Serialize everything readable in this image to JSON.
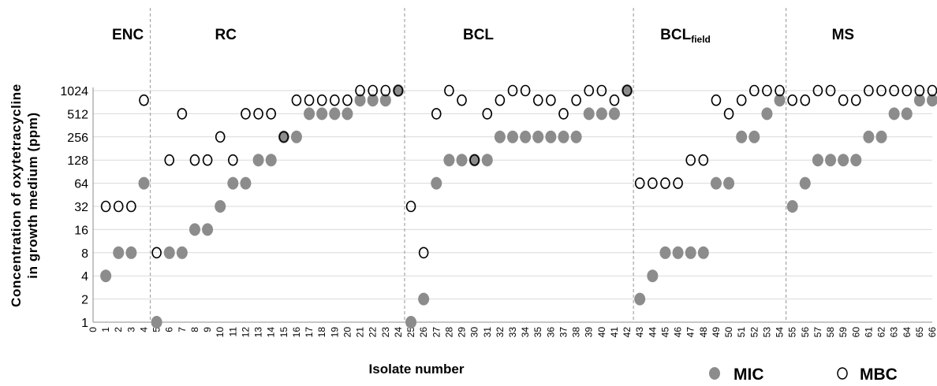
{
  "chart_data": {
    "type": "scatter",
    "y_scale": "log2",
    "ylim": [
      1,
      1024
    ],
    "yticks": [
      "1",
      "2",
      "4",
      "8",
      "16",
      "32",
      "64",
      "128",
      "256",
      "512",
      "1024"
    ],
    "xlim": [
      0,
      66
    ],
    "xticks": [
      "0",
      "1",
      "2",
      "3",
      "4",
      "5",
      "6",
      "7",
      "8",
      "9",
      "10",
      "11",
      "12",
      "13",
      "14",
      "15",
      "16",
      "17",
      "18",
      "19",
      "20",
      "21",
      "22",
      "23",
      "24",
      "25",
      "26",
      "27",
      "28",
      "29",
      "30",
      "31",
      "32",
      "33",
      "34",
      "35",
      "36",
      "37",
      "38",
      "39",
      "40",
      "41",
      "42",
      "43",
      "44",
      "45",
      "46",
      "47",
      "48",
      "49",
      "50",
      "51",
      "52",
      "53",
      "54",
      "55",
      "56",
      "57",
      "58",
      "59",
      "60",
      "61",
      "62",
      "63",
      "64",
      "65",
      "66"
    ],
    "xlabel": "Isolate number",
    "ylabel_line1": "Concentration of oxytetracycline",
    "ylabel_line2": "in growth medium (ppm)",
    "grid": "horizontal",
    "groups": [
      {
        "label": "ENC",
        "sub": "",
        "x_start": 0.5
      },
      {
        "label": "RC",
        "sub": "",
        "x_start": 4.5
      },
      {
        "label": "BCL",
        "sub": "",
        "x_start": 24.5
      },
      {
        "label": "BCL",
        "sub": "field",
        "x_start": 42.5
      },
      {
        "label": "MS",
        "sub": "",
        "x_start": 54.5
      }
    ],
    "separators": [
      4.5,
      24.5,
      42.5,
      54.5
    ],
    "legend": {
      "position": "bottom-right",
      "items": [
        "MIC",
        "MBC"
      ]
    },
    "series": [
      {
        "name": "MIC",
        "marker": "filled-circle",
        "color": "#8c8c8c",
        "x": [
          1,
          2,
          3,
          4,
          5,
          6,
          7,
          8,
          9,
          10,
          11,
          12,
          13,
          14,
          15,
          16,
          17,
          18,
          19,
          20,
          21,
          22,
          23,
          24,
          25,
          26,
          27,
          28,
          29,
          30,
          31,
          32,
          33,
          34,
          35,
          36,
          37,
          38,
          39,
          40,
          41,
          42,
          43,
          44,
          45,
          46,
          47,
          48,
          49,
          50,
          51,
          52,
          53,
          54,
          55,
          56,
          57,
          58,
          59,
          60,
          61,
          62,
          63,
          64,
          65,
          66
        ],
        "y": [
          4,
          8,
          8,
          64,
          1,
          8,
          8,
          16,
          16,
          32,
          64,
          64,
          128,
          128,
          256,
          256,
          512,
          512,
          512,
          512,
          768,
          768,
          768,
          1024,
          1,
          2,
          64,
          128,
          128,
          128,
          128,
          256,
          256,
          256,
          256,
          256,
          256,
          256,
          512,
          512,
          512,
          1024,
          2,
          4,
          8,
          8,
          8,
          8,
          64,
          64,
          256,
          256,
          512,
          768,
          32,
          64,
          128,
          128,
          128,
          128,
          256,
          256,
          512,
          512,
          768,
          768
        ]
      },
      {
        "name": "MBC",
        "marker": "open-circle",
        "color": "#000000",
        "x": [
          1,
          2,
          3,
          4,
          5,
          6,
          7,
          8,
          9,
          10,
          11,
          12,
          13,
          14,
          15,
          16,
          17,
          18,
          19,
          20,
          21,
          22,
          23,
          24,
          25,
          26,
          27,
          28,
          29,
          30,
          31,
          32,
          33,
          34,
          35,
          36,
          37,
          38,
          39,
          40,
          41,
          42,
          43,
          44,
          45,
          46,
          47,
          48,
          49,
          50,
          51,
          52,
          53,
          54,
          55,
          56,
          57,
          58,
          59,
          60,
          61,
          62,
          63,
          64,
          65,
          66
        ],
        "y": [
          32,
          32,
          32,
          768,
          8,
          128,
          512,
          128,
          128,
          256,
          128,
          512,
          512,
          512,
          256,
          768,
          768,
          768,
          768,
          768,
          1024,
          1024,
          1024,
          1024,
          32,
          8,
          512,
          1024,
          768,
          128,
          512,
          768,
          1024,
          1024,
          768,
          768,
          512,
          768,
          1024,
          1024,
          768,
          1024,
          64,
          64,
          64,
          64,
          128,
          128,
          768,
          512,
          768,
          1024,
          1024,
          1024,
          768,
          768,
          1024,
          1024,
          768,
          768,
          1024,
          1024,
          1024,
          1024,
          1024,
          1024
        ]
      }
    ]
  },
  "colors": {
    "mic": "#8c8c8c",
    "mbc_stroke": "#000000",
    "grid": "#d9d9d9",
    "separator": "#a6a6a6"
  }
}
